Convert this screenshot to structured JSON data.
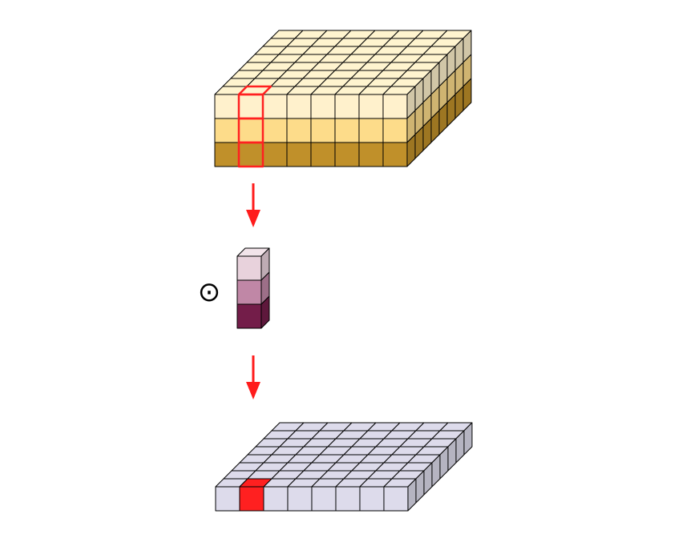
{
  "diagram": {
    "operator_symbol": "⊙",
    "colors": {
      "input_top": "#fff4cf",
      "input_layer_top": "#fff1cc",
      "input_layer_middle": "#fddc8a",
      "input_layer_bottom": "#c0902a",
      "kernel_top": "#f2e4ea",
      "kernel_layer_top": "#e8d2dc",
      "kernel_layer_middle": "#c087a6",
      "kernel_layer_bottom": "#731d49",
      "output_cell": "#dddbeb",
      "highlight": "#ff2020",
      "arrow": "#ff1c1c",
      "edge": "#000000"
    }
  }
}
